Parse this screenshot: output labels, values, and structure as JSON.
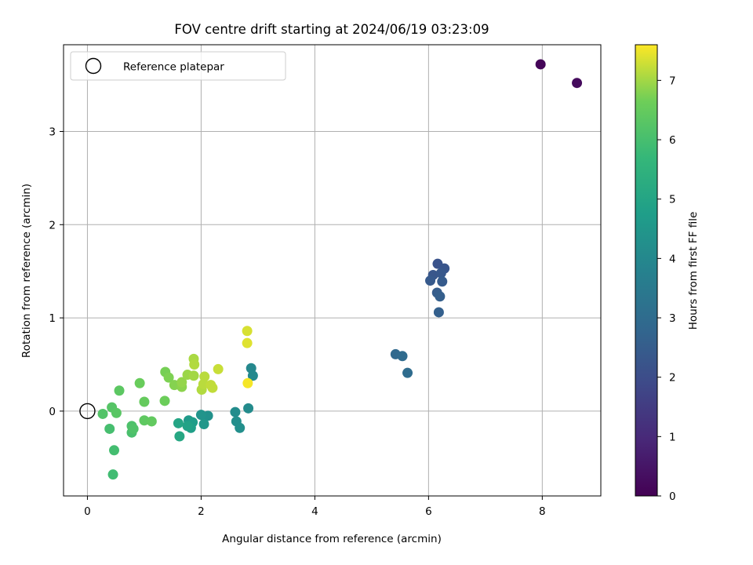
{
  "chart_data": {
    "type": "scatter",
    "title": "FOV centre drift starting at 2024/06/19 03:23:09",
    "xlabel": "Angular distance from reference (arcmin)",
    "ylabel": "Rotation from reference (arcmin)",
    "xlim": [
      -0.42,
      9.03
    ],
    "ylim": [
      -0.91,
      3.93
    ],
    "xticks": [
      0,
      2,
      4,
      6,
      8
    ],
    "xtick_labels": [
      "0",
      "2",
      "4",
      "6",
      "8"
    ],
    "yticks": [
      0,
      1,
      2,
      3
    ],
    "ytick_labels": [
      "0",
      "1",
      "2",
      "3"
    ],
    "grid": true,
    "legend": {
      "placement": "top-left",
      "entries": [
        {
          "label": "Reference platepar",
          "marker": "open-circle"
        }
      ]
    },
    "colorbar": {
      "label": "Hours from first FF file",
      "colormap": "viridis",
      "range": [
        0,
        7.6
      ],
      "ticks": [
        0,
        1,
        2,
        3,
        4,
        5,
        6,
        7
      ],
      "tick_labels": [
        "0",
        "1",
        "2",
        "3",
        "4",
        "5",
        "6",
        "7"
      ]
    },
    "reference_point": {
      "x": 0,
      "y": 0
    },
    "points": [
      {
        "x": 7.97,
        "y": 3.72,
        "c": 0.1
      },
      {
        "x": 8.61,
        "y": 3.52,
        "c": 0.25
      },
      {
        "x": 6.16,
        "y": 1.58,
        "c": 2.2
      },
      {
        "x": 6.28,
        "y": 1.53,
        "c": 2.25
      },
      {
        "x": 6.08,
        "y": 1.46,
        "c": 2.3
      },
      {
        "x": 6.22,
        "y": 1.48,
        "c": 2.35
      },
      {
        "x": 6.03,
        "y": 1.4,
        "c": 2.4
      },
      {
        "x": 6.24,
        "y": 1.39,
        "c": 2.45
      },
      {
        "x": 6.15,
        "y": 1.27,
        "c": 2.5
      },
      {
        "x": 6.2,
        "y": 1.23,
        "c": 2.55
      },
      {
        "x": 6.18,
        "y": 1.06,
        "c": 2.6
      },
      {
        "x": 5.42,
        "y": 0.61,
        "c": 2.9
      },
      {
        "x": 5.54,
        "y": 0.59,
        "c": 2.95
      },
      {
        "x": 5.63,
        "y": 0.41,
        "c": 3.0
      },
      {
        "x": 2.88,
        "y": 0.46,
        "c": 4.0
      },
      {
        "x": 2.91,
        "y": 0.38,
        "c": 4.05
      },
      {
        "x": 2.83,
        "y": 0.03,
        "c": 4.1
      },
      {
        "x": 2.6,
        "y": -0.01,
        "c": 4.15
      },
      {
        "x": 2.62,
        "y": -0.11,
        "c": 4.2
      },
      {
        "x": 2.68,
        "y": -0.18,
        "c": 4.25
      },
      {
        "x": 2.12,
        "y": -0.05,
        "c": 4.3
      },
      {
        "x": 2.0,
        "y": -0.04,
        "c": 4.4
      },
      {
        "x": 2.05,
        "y": -0.14,
        "c": 4.5
      },
      {
        "x": 1.78,
        "y": -0.1,
        "c": 4.6
      },
      {
        "x": 1.85,
        "y": -0.12,
        "c": 4.7
      },
      {
        "x": 1.82,
        "y": -0.18,
        "c": 4.8
      },
      {
        "x": 1.76,
        "y": -0.16,
        "c": 4.9
      },
      {
        "x": 1.6,
        "y": -0.13,
        "c": 5.0
      },
      {
        "x": 1.62,
        "y": -0.27,
        "c": 5.1
      },
      {
        "x": 0.45,
        "y": -0.68,
        "c": 5.9
      },
      {
        "x": 0.47,
        "y": -0.42,
        "c": 5.95
      },
      {
        "x": 0.39,
        "y": -0.19,
        "c": 6.0
      },
      {
        "x": 0.78,
        "y": -0.23,
        "c": 6.05
      },
      {
        "x": 0.78,
        "y": -0.16,
        "c": 6.1
      },
      {
        "x": 0.81,
        "y": -0.19,
        "c": 6.15
      },
      {
        "x": 0.27,
        "y": -0.03,
        "c": 6.2
      },
      {
        "x": 0.43,
        "y": 0.04,
        "c": 6.25
      },
      {
        "x": 0.51,
        "y": -0.02,
        "c": 6.3
      },
      {
        "x": 0.56,
        "y": 0.22,
        "c": 6.35
      },
      {
        "x": 1.0,
        "y": -0.1,
        "c": 6.4
      },
      {
        "x": 1.13,
        "y": -0.11,
        "c": 6.45
      },
      {
        "x": 1.0,
        "y": 0.1,
        "c": 6.5
      },
      {
        "x": 0.92,
        "y": 0.3,
        "c": 6.55
      },
      {
        "x": 1.36,
        "y": 0.11,
        "c": 6.6
      },
      {
        "x": 1.37,
        "y": 0.42,
        "c": 6.7
      },
      {
        "x": 1.43,
        "y": 0.36,
        "c": 6.75
      },
      {
        "x": 1.53,
        "y": 0.28,
        "c": 6.8
      },
      {
        "x": 1.66,
        "y": 0.26,
        "c": 6.85
      },
      {
        "x": 1.66,
        "y": 0.31,
        "c": 6.9
      },
      {
        "x": 1.76,
        "y": 0.39,
        "c": 6.95
      },
      {
        "x": 1.87,
        "y": 0.38,
        "c": 7.0
      },
      {
        "x": 1.87,
        "y": 0.56,
        "c": 7.05
      },
      {
        "x": 1.88,
        "y": 0.5,
        "c": 7.1
      },
      {
        "x": 2.01,
        "y": 0.23,
        "c": 7.1
      },
      {
        "x": 2.04,
        "y": 0.29,
        "c": 7.15
      },
      {
        "x": 2.06,
        "y": 0.37,
        "c": 7.15
      },
      {
        "x": 2.17,
        "y": 0.28,
        "c": 7.2
      },
      {
        "x": 2.2,
        "y": 0.25,
        "c": 7.2
      },
      {
        "x": 2.3,
        "y": 0.45,
        "c": 7.25
      },
      {
        "x": 2.81,
        "y": 0.86,
        "c": 7.35
      },
      {
        "x": 2.81,
        "y": 0.73,
        "c": 7.4
      },
      {
        "x": 2.82,
        "y": 0.3,
        "c": 7.55
      }
    ]
  }
}
